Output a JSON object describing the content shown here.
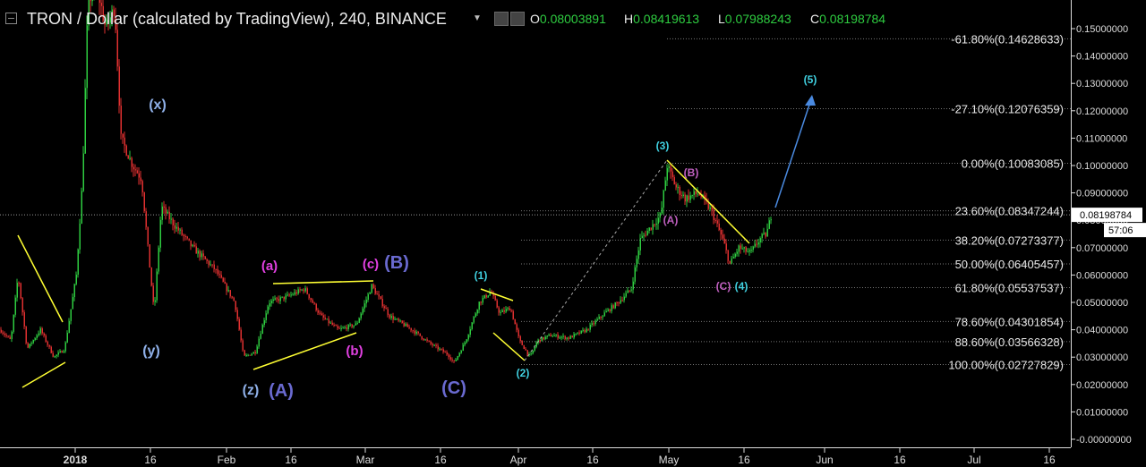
{
  "header": {
    "title": "TRON / Dollar (calculated by TradingView), 240, BINANCE",
    "open_label": "O",
    "open": "0.08003891",
    "high_label": "H",
    "high": "0.08419613",
    "low_label": "L",
    "low": "0.07988243",
    "close_label": "C",
    "close": "0.08198784"
  },
  "price_badge": {
    "price": "0.08198784",
    "countdown": "57:06"
  },
  "chart_data": {
    "type": "candlestick",
    "x_ticks": [
      "2018",
      "16",
      "Feb",
      "16",
      "Mar",
      "16",
      "Apr",
      "16",
      "May",
      "16",
      "Jun",
      "16",
      "Jul",
      "16"
    ],
    "y_ticks": [
      "0.15000000",
      "0.14000000",
      "0.13000000",
      "0.12000000",
      "0.11000000",
      "0.10000000",
      "0.09000000",
      "0.08000000",
      "0.07000000",
      "0.06000000",
      "0.05000000",
      "0.04000000",
      "0.03000000",
      "0.02000000",
      "0.01000000",
      "-0.00000000"
    ],
    "ylim": [
      0,
      0.155
    ],
    "current_price": 0.08198784,
    "fib_levels": [
      {
        "label": "-61.80%(0.14628633)",
        "value": 0.14628633
      },
      {
        "label": "-27.10%(0.12076359)",
        "value": 0.12076359
      },
      {
        "label": "0.00%(0.10083085)",
        "value": 0.10083085
      },
      {
        "label": "23.60%(0.08347244)",
        "value": 0.08347244
      },
      {
        "label": "38.20%(0.07273377)",
        "value": 0.07273377
      },
      {
        "label": "50.00%(0.06405457)",
        "value": 0.06405457
      },
      {
        "label": "61.80%(0.05537537)",
        "value": 0.05537537
      },
      {
        "label": "78.60%(0.04301854)",
        "value": 0.04301854
      },
      {
        "label": "88.60%(0.03566328)",
        "value": 0.03566328
      },
      {
        "label": "100.00%(0.02727829)",
        "value": 0.02727829
      }
    ],
    "wave_labels": [
      {
        "text": "(x)",
        "color": "#8fb0e8"
      },
      {
        "text": "(y)",
        "color": "#8fb0e8"
      },
      {
        "text": "(z)",
        "color": "#8fb0e8"
      },
      {
        "text": "(A)",
        "color": "#6a6ad0"
      },
      {
        "text": "(a)",
        "color": "#e040e0"
      },
      {
        "text": "(b)",
        "color": "#e040e0"
      },
      {
        "text": "(c)",
        "color": "#e040e0"
      },
      {
        "text": "(B)",
        "color": "#6a6ad0"
      },
      {
        "text": "(C)",
        "color": "#6a6ad0"
      },
      {
        "text": "(1)",
        "color": "#40d0e0"
      },
      {
        "text": "(2)",
        "color": "#40d0e0"
      },
      {
        "text": "(3)",
        "color": "#40d0e0"
      },
      {
        "text": "(A)",
        "color": "#c060c0"
      },
      {
        "text": "(B)",
        "color": "#c060c0"
      },
      {
        "text": "(C)",
        "color": "#c060c0"
      },
      {
        "text": "(4)",
        "color": "#40d0e0"
      },
      {
        "text": "(5)",
        "color": "#40d0e0"
      }
    ],
    "colors": {
      "up": "#2ecc40",
      "down": "#e03030",
      "trendline": "#ffff33",
      "projection": "#4a8ae0"
    }
  }
}
